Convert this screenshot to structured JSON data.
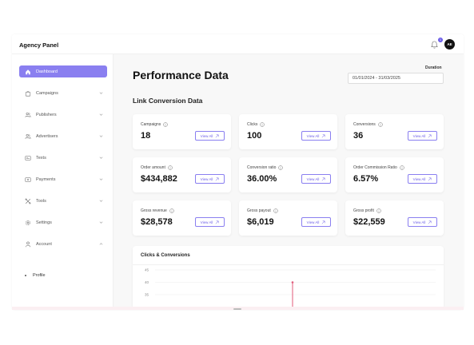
{
  "app": {
    "title": "Agency Panel"
  },
  "header": {
    "notification_count": "1",
    "avatar_initials": "AE"
  },
  "sidebar": {
    "items": [
      {
        "label": "Dashboard",
        "icon": "home-icon",
        "active": true
      },
      {
        "label": "Campaigns",
        "icon": "bag-icon"
      },
      {
        "label": "Publishers",
        "icon": "users-icon"
      },
      {
        "label": "Advertisers",
        "icon": "users-icon"
      },
      {
        "label": "Texts",
        "icon": "text-icon"
      },
      {
        "label": "Payments",
        "icon": "payment-icon"
      },
      {
        "label": "Tools",
        "icon": "tools-icon"
      },
      {
        "label": "Settings",
        "icon": "gear-icon"
      },
      {
        "label": "Account",
        "icon": "user-icon",
        "expanded": true
      }
    ],
    "sub_items": [
      {
        "label": "Profile"
      }
    ]
  },
  "main": {
    "page_title": "Performance Data",
    "duration_label": "Duration",
    "date_range": "01/01/2024 - 31/03/2025",
    "section_title": "Link Conversion Data",
    "view_all_label": "View All",
    "cards": [
      {
        "label": "Campaigns",
        "value": "18"
      },
      {
        "label": "Clicks",
        "value": "100"
      },
      {
        "label": "Conversions",
        "value": "36"
      },
      {
        "label": "Order amount",
        "value": "$434,882"
      },
      {
        "label": "Conversion ratio",
        "value": "36.00%"
      },
      {
        "label": "Order Commission Ratio",
        "value": "6.57%"
      },
      {
        "label": "Gross revenue",
        "value": "$28,578"
      },
      {
        "label": "Gross payout",
        "value": "$6,019"
      },
      {
        "label": "Gross profit",
        "value": "$22,559"
      }
    ],
    "chart_title": "Clicks & Conversions"
  },
  "colors": {
    "accent": "#8a7ff0",
    "accent_text": "#6b5ce7",
    "marker": "#e05a7a"
  },
  "chart_data": {
    "type": "line",
    "title": "Clicks & Conversions",
    "y_ticks": [
      45,
      40,
      35
    ],
    "ylim": [
      30,
      45
    ],
    "series": [],
    "marker_x_fraction": 0.49,
    "marker_y_value": 40
  }
}
